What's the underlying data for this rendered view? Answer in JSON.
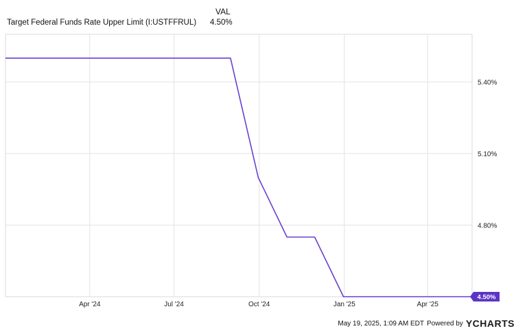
{
  "legend": {
    "column_header": "VAL",
    "series_name": "Target Federal Funds Rate Upper Limit (I:USTFFRUL)",
    "series_value": "4.50%"
  },
  "footer": {
    "timestamp": "May 19, 2025, 1:09 AM EDT",
    "powered_by": "Powered by",
    "brand_letter": "Y",
    "brand_rest": "CHARTS"
  },
  "colors": {
    "line": "#6a3fd1",
    "badge": "#5b34c7",
    "grid": "#e3e3e3",
    "frame": "#d9d9d9"
  },
  "chart_data": {
    "type": "line",
    "x_tick_labels": [
      "Apr '24",
      "Jul '24",
      "Oct '24",
      "Jan '25",
      "Apr '25"
    ],
    "x_tick_dates": [
      "2024-04-01",
      "2024-07-01",
      "2024-10-01",
      "2025-01-01",
      "2025-04-01"
    ],
    "y_ticks": [
      5.4,
      5.1,
      4.8
    ],
    "y_tick_labels": [
      "5.40%",
      "5.10%",
      "4.80%"
    ],
    "xlim": [
      "2024-01-01",
      "2025-05-19"
    ],
    "ylim": [
      4.5,
      5.6
    ],
    "grid": true,
    "series": [
      {
        "name": "Target Federal Funds Rate Upper Limit (I:USTFFRUL)",
        "x": [
          "2024-01-01",
          "2024-08-31",
          "2024-09-30",
          "2024-10-31",
          "2024-11-30",
          "2024-12-31",
          "2025-01-31",
          "2025-02-28",
          "2025-03-31",
          "2025-04-30",
          "2025-05-19"
        ],
        "values": [
          5.5,
          5.5,
          5.0,
          4.75,
          4.75,
          4.5,
          4.5,
          4.5,
          4.5,
          4.5,
          4.5
        ]
      }
    ],
    "last_value_label": "4.50%"
  }
}
